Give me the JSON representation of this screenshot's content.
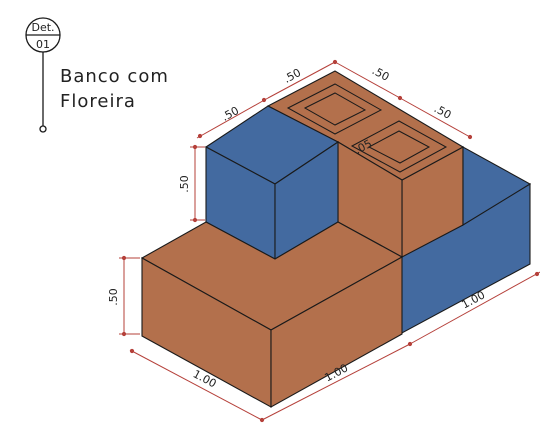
{
  "detail_tag": {
    "top": "Det.",
    "bottom": "01"
  },
  "title_lines": [
    "Banco com",
    "Floreira"
  ],
  "colors": {
    "brown": "#b3704c",
    "blue": "#436aa0",
    "edge": "#1a1a1a",
    "dim": "#b5403a",
    "text": "#222222"
  },
  "dimensions": {
    "top_left": ".50",
    "top_right": ".50",
    "left_upper": ".50",
    "right_upper": ".50",
    "planter_wall": ".05",
    "vertical_upper": ".50",
    "vertical_lower": ".50",
    "front_left": "1.00",
    "front_right": "1.00",
    "side_right": "1.00"
  }
}
